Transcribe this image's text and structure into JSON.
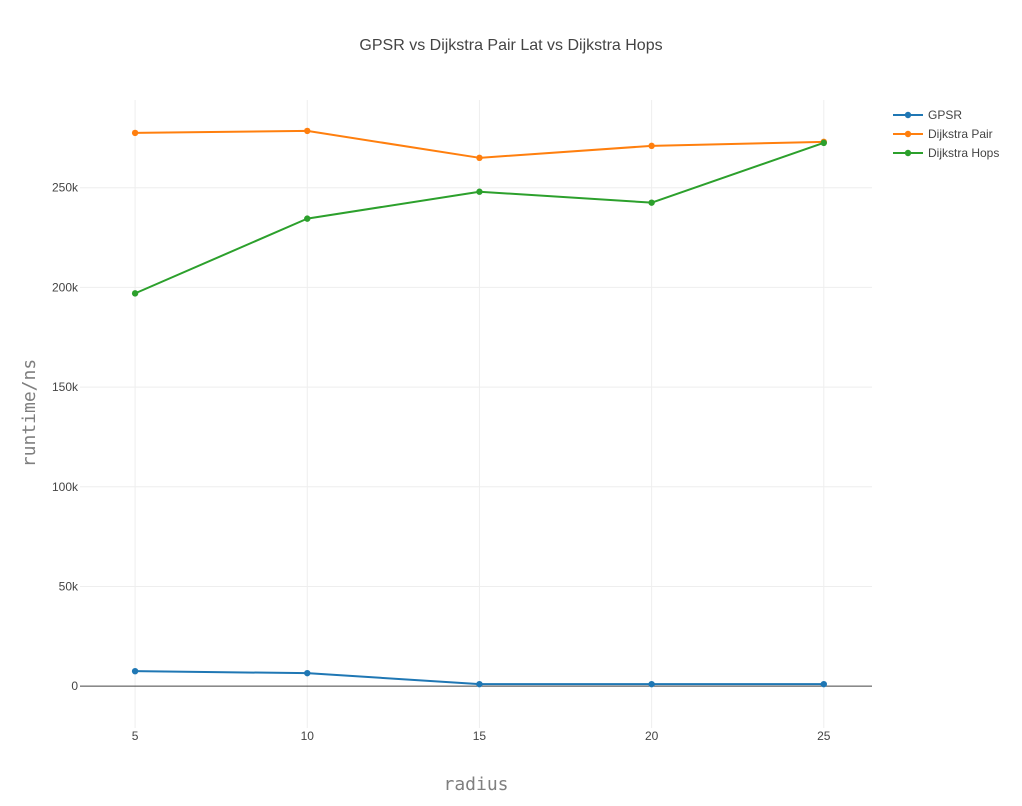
{
  "chart_data": {
    "type": "line",
    "title": "GPSR vs Dijkstra Pair Lat vs Dijkstra Hops",
    "xlabel": "radius",
    "ylabel": "runtime/ns",
    "x": [
      5,
      10,
      15,
      20,
      25
    ],
    "xlim": [
      3.4,
      26.4
    ],
    "ylim": [
      -21000,
      294000
    ],
    "x_ticks": [
      5,
      10,
      15,
      20,
      25
    ],
    "y_ticks": [
      {
        "value": 0,
        "label": "0"
      },
      {
        "value": 50000,
        "label": "50k"
      },
      {
        "value": 100000,
        "label": "100k"
      },
      {
        "value": 150000,
        "label": "150k"
      },
      {
        "value": 200000,
        "label": "200k"
      },
      {
        "value": 250000,
        "label": "250k"
      }
    ],
    "grid": true,
    "legend_position": "top-right",
    "series": [
      {
        "name": "GPSR",
        "color": "#1f77b4",
        "values": [
          7500,
          6500,
          1000,
          1000,
          1000
        ]
      },
      {
        "name": "Dijkstra Pair",
        "color": "#ff7f0e",
        "values": [
          277500,
          278500,
          265000,
          271000,
          273000
        ]
      },
      {
        "name": "Dijkstra Hops",
        "color": "#2ca02c",
        "values": [
          197000,
          234500,
          248000,
          242500,
          272500
        ]
      }
    ]
  }
}
